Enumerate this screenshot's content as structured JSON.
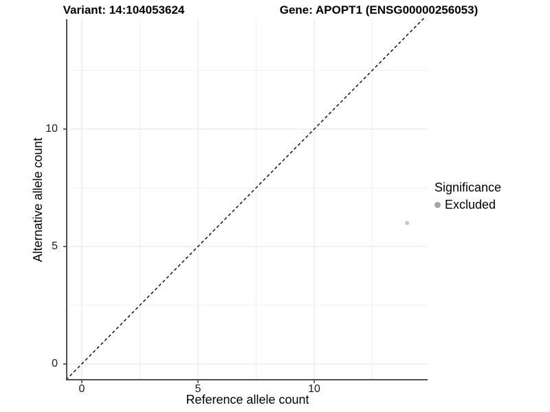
{
  "chart_data": {
    "type": "scatter",
    "title_left": "Variant: 14:104053624",
    "title_right": "Gene: APOPT1 (ENSG00000256053)",
    "xlabel": "Reference allele count",
    "ylabel": "Alternative allele count",
    "xlim": [
      -0.7,
      14.85
    ],
    "ylim": [
      -0.7,
      14.85
    ],
    "xticks": [
      0,
      5,
      10
    ],
    "yticks": [
      0,
      5,
      10
    ],
    "minor_gridlines": [
      2.5,
      7.5,
      12.5
    ],
    "grid": true,
    "points": [
      {
        "x": 14,
        "y": 6,
        "series": "Excluded"
      }
    ],
    "point_color": "#c6c6c6",
    "point_radius_px": 3,
    "reference_line": {
      "style": "dashed",
      "color": "#000000",
      "from": [
        -0.68,
        -0.68
      ],
      "to": [
        14.72,
        14.72
      ]
    },
    "legend": {
      "title": "Significance",
      "position": "right",
      "entries": [
        {
          "label": "Excluded",
          "color": "#a6a6a6"
        }
      ]
    },
    "colors": {
      "background": "#ffffff",
      "grid_major": "#e3e3e3",
      "grid_minor": "#f1f1f1",
      "axis_line": "#4f4f4f",
      "tick_mark": "#333333",
      "text": "#1a1a1a"
    }
  }
}
